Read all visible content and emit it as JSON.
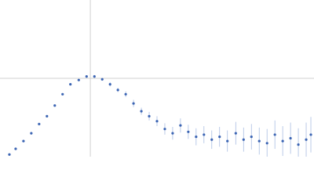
{
  "chart_data": {
    "type": "scatter",
    "x": [
      0.18,
      0.3,
      0.45,
      0.6,
      0.75,
      0.9,
      1.05,
      1.2,
      1.35,
      1.51,
      1.66,
      1.81,
      1.96,
      2.11,
      2.26,
      2.41,
      2.56,
      2.71,
      2.86,
      3.01,
      3.16,
      3.31,
      3.46,
      3.61,
      3.76,
      3.91,
      4.06,
      4.21,
      4.36,
      4.52,
      4.67,
      4.82,
      4.97,
      5.12,
      5.27,
      5.42,
      5.57,
      5.72,
      5.87,
      5.96
    ],
    "series": [
      {
        "color": "#3b64b3",
        "error_color": "#a9bde2",
        "values": [
          0.03,
          0.11,
          0.22,
          0.33,
          0.46,
          0.57,
          0.72,
          0.88,
          1.02,
          1.08,
          1.13,
          1.13,
          1.09,
          1.02,
          0.94,
          0.88,
          0.75,
          0.64,
          0.57,
          0.5,
          0.39,
          0.33,
          0.44,
          0.35,
          0.28,
          0.31,
          0.24,
          0.28,
          0.22,
          0.33,
          0.24,
          0.28,
          0.22,
          0.19,
          0.31,
          0.22,
          0.26,
          0.17,
          0.24,
          0.31
        ],
        "errors": [
          0.005,
          0.005,
          0.005,
          0.005,
          0.005,
          0.008,
          0.01,
          0.01,
          0.01,
          0.015,
          0.015,
          0.02,
          0.02,
          0.03,
          0.03,
          0.04,
          0.05,
          0.05,
          0.06,
          0.07,
          0.08,
          0.09,
          0.1,
          0.1,
          0.12,
          0.12,
          0.13,
          0.14,
          0.15,
          0.16,
          0.17,
          0.18,
          0.19,
          0.2,
          0.2,
          0.21,
          0.22,
          0.23,
          0.24,
          0.25
        ]
      }
    ],
    "xlim": [
      0,
      6.02
    ],
    "ylim": [
      0,
      2.208
    ],
    "reference_lines": {
      "x": 1.732,
      "y": 1.104,
      "color": "#d0d0d0"
    }
  }
}
